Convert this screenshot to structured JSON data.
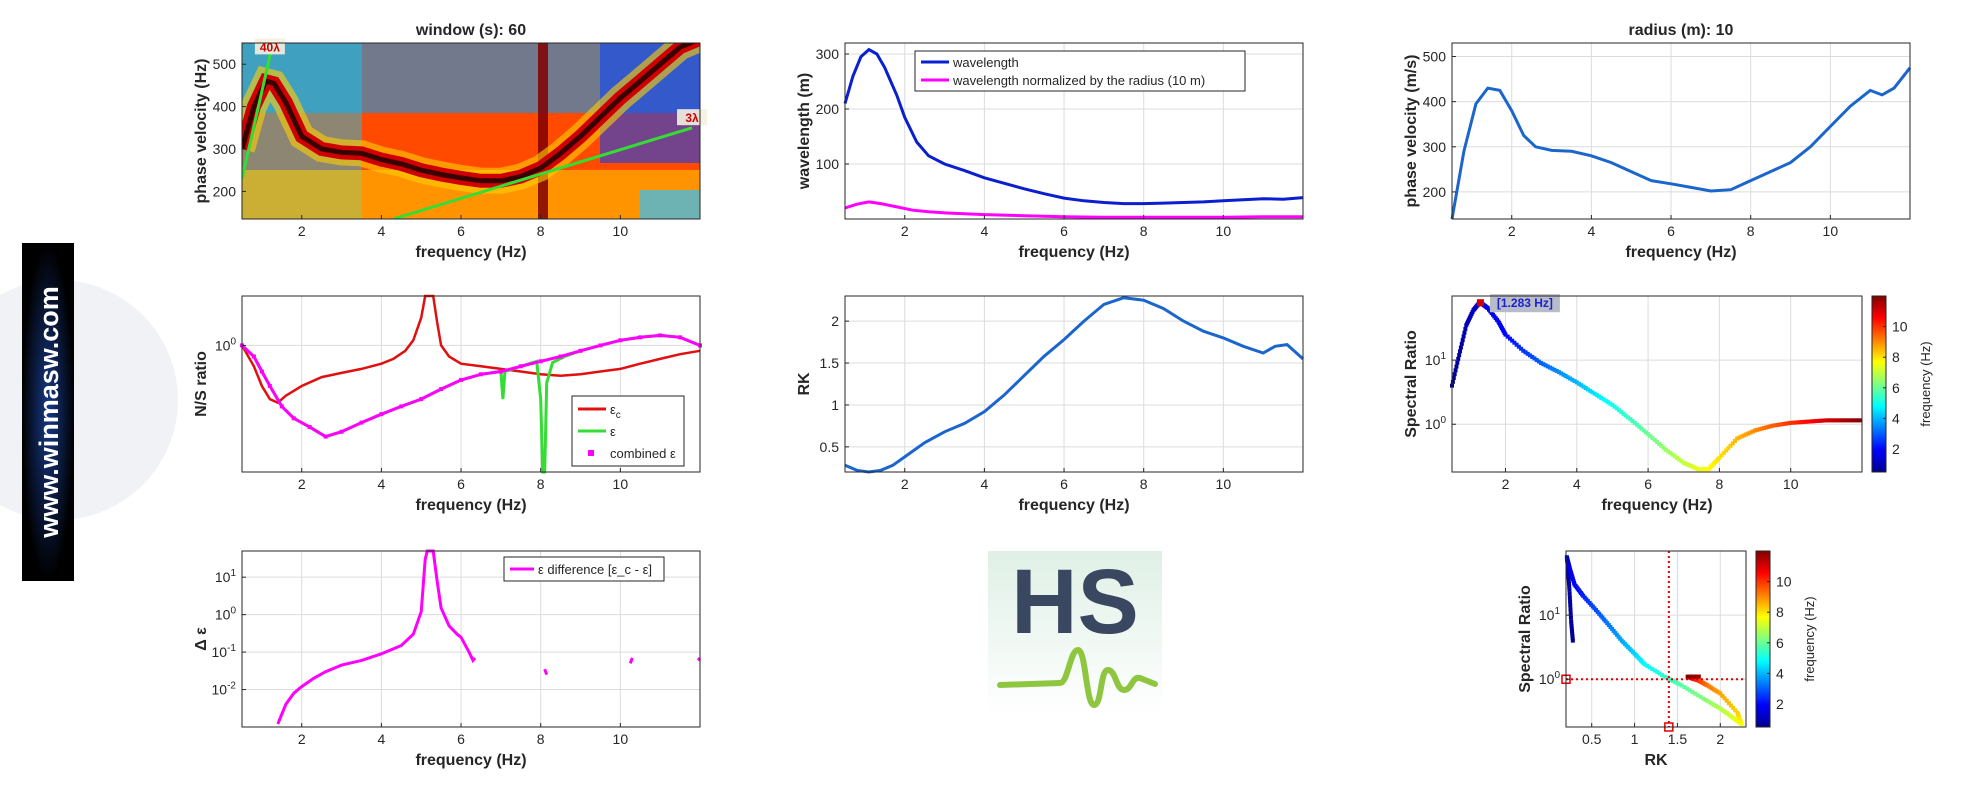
{
  "website": "www.winmasw.com",
  "logo": {
    "text": "HS"
  },
  "colors": {
    "axis": "#262626",
    "grid": "#dcdcdc",
    "blue": "#0044cc",
    "midblue": "#1a66cc",
    "magenta": "#ff00ff",
    "red": "#e01010",
    "green": "#33dd33",
    "darkred": "#cc0000"
  },
  "chart_data": [
    {
      "id": "p11",
      "type": "heatmap",
      "title": "window (s): 60",
      "xlabel": "frequency (Hz)",
      "ylabel": "phase velocity (Hz)",
      "xlim": [
        0.5,
        12
      ],
      "ylim": [
        135,
        550
      ],
      "xticks": [
        2,
        4,
        6,
        8,
        10
      ],
      "yticks": [
        200,
        300,
        400,
        500
      ],
      "annotations": [
        {
          "text": "40λ",
          "x": 1.2,
          "y": 535
        },
        {
          "text": "3λ",
          "x": 11.8,
          "y": 368
        }
      ],
      "lines": [
        {
          "name": "40λ",
          "x": [
            0.5,
            1.3
          ],
          "y": [
            230,
            560
          ]
        },
        {
          "name": "3λ",
          "x": [
            4.3,
            11.8
          ],
          "y": 135,
          "y2": 350
        }
      ],
      "ridge": {
        "x": [
          0.5,
          0.8,
          1.1,
          1.3,
          1.6,
          2.0,
          2.5,
          3.0,
          3.5,
          4.0,
          4.5,
          5.0,
          5.5,
          6.0,
          6.5,
          7.0,
          7.5,
          8.0,
          8.5,
          9.0,
          9.5,
          10.0,
          10.5,
          11.0,
          11.5,
          12.0
        ],
        "y": [
          300,
          400,
          460,
          455,
          410,
          330,
          300,
          292,
          290,
          275,
          265,
          250,
          240,
          232,
          225,
          225,
          235,
          255,
          290,
          330,
          375,
          420,
          460,
          500,
          540,
          560
        ]
      }
    },
    {
      "id": "p12",
      "type": "line",
      "xlabel": "frequency (Hz)",
      "ylabel": "wavelength (m)",
      "xlim": [
        0.5,
        12
      ],
      "ylim": [
        0,
        320
      ],
      "xticks": [
        2,
        4,
        6,
        8,
        10
      ],
      "yticks": [
        100,
        200,
        300
      ],
      "legend": "top-center",
      "series": [
        {
          "name": "wavelength",
          "color": "#0a1fd0",
          "x": [
            0.5,
            0.7,
            0.9,
            1.1,
            1.3,
            1.5,
            1.8,
            2.0,
            2.3,
            2.6,
            3.0,
            3.5,
            4.0,
            4.5,
            5.0,
            5.5,
            6.0,
            6.5,
            7.0,
            7.5,
            8.0,
            8.5,
            9.0,
            9.5,
            10.0,
            10.5,
            11.0,
            11.5,
            12.0
          ],
          "y": [
            210,
            260,
            295,
            308,
            300,
            275,
            225,
            185,
            140,
            115,
            100,
            88,
            75,
            65,
            55,
            46,
            38,
            33,
            30,
            28,
            28,
            29,
            30,
            31,
            33,
            35,
            37,
            36,
            39
          ]
        },
        {
          "name": "wavelength normalized by the radius (10 m)",
          "color": "#ff00ff",
          "x": [
            0.5,
            0.8,
            1.1,
            1.4,
            1.8,
            2.2,
            2.6,
            3.0,
            4.0,
            5.0,
            6.0,
            7.0,
            8.0,
            9.0,
            10.0,
            11.0,
            12.0
          ],
          "y": [
            20,
            27,
            31,
            28,
            22,
            16,
            13,
            11,
            8,
            6,
            4,
            3,
            3,
            3,
            3,
            4,
            4
          ]
        }
      ]
    },
    {
      "id": "p13",
      "type": "line",
      "title": "radius (m): 10",
      "xlabel": "frequency (Hz)",
      "ylabel": "phase velocity (m/s)",
      "xlim": [
        0.5,
        12
      ],
      "ylim": [
        140,
        530
      ],
      "xticks": [
        2,
        4,
        6,
        8,
        10
      ],
      "yticks": [
        200,
        300,
        400,
        500
      ],
      "series": [
        {
          "color": "#1a66cc",
          "x": [
            0.5,
            0.8,
            1.1,
            1.4,
            1.7,
            2.0,
            2.3,
            2.6,
            3.0,
            3.5,
            4.0,
            4.5,
            5.0,
            5.5,
            6.0,
            6.5,
            7.0,
            7.5,
            8.0,
            8.5,
            9.0,
            9.5,
            10.0,
            10.5,
            11.0,
            11.3,
            11.6,
            12.0
          ],
          "y": [
            140,
            290,
            395,
            430,
            425,
            380,
            325,
            300,
            292,
            290,
            280,
            265,
            245,
            225,
            218,
            210,
            202,
            205,
            225,
            245,
            265,
            300,
            345,
            390,
            425,
            415,
            430,
            475
          ]
        }
      ]
    },
    {
      "id": "p21",
      "type": "line",
      "xlabel": "frequency (Hz)",
      "ylabel": "N/S ratio",
      "xlim": [
        0.5,
        12
      ],
      "ylim": [
        0.3,
        1.6
      ],
      "yscale": "log",
      "xticks": [
        2,
        4,
        6,
        8,
        10
      ],
      "yticks": [
        1
      ],
      "yticklabels": [
        "10^0"
      ],
      "legend": "bottom-right",
      "series": [
        {
          "name": "ε_c",
          "color": "#e01010",
          "x": [
            0.5,
            0.8,
            1.0,
            1.2,
            1.4,
            1.6,
            2.0,
            2.5,
            3.0,
            3.5,
            4.0,
            4.3,
            4.6,
            4.8,
            5.0,
            5.1,
            5.2,
            5.3,
            5.4,
            5.5,
            5.7,
            6.0,
            6.5,
            7.0,
            7.5,
            8.0,
            8.5,
            9.0,
            9.5,
            10.0,
            10.5,
            11.0,
            11.5,
            12.0
          ],
          "y": [
            1.0,
            0.82,
            0.68,
            0.6,
            0.58,
            0.62,
            0.68,
            0.74,
            0.77,
            0.8,
            0.84,
            0.88,
            0.95,
            1.05,
            1.3,
            1.6,
            1.6,
            1.6,
            1.25,
            1.0,
            0.9,
            0.84,
            0.82,
            0.8,
            0.78,
            0.76,
            0.75,
            0.76,
            0.78,
            0.8,
            0.84,
            0.88,
            0.92,
            0.95
          ]
        },
        {
          "name": "ε",
          "color": "#33dd33",
          "x": [
            0.5,
            0.8,
            1.0,
            1.2,
            1.5,
            1.8,
            2.2,
            2.6,
            3.0,
            3.5,
            4.0,
            4.5,
            5.0,
            5.5,
            6.0,
            6.5,
            7.0,
            7.05,
            7.1,
            7.5,
            7.9,
            8.0,
            8.05,
            8.1,
            8.15,
            8.3,
            8.6,
            9.0,
            9.5,
            10.0,
            10.5,
            11.0,
            11.5,
            12.0
          ],
          "y": [
            1.0,
            0.9,
            0.78,
            0.68,
            0.56,
            0.5,
            0.46,
            0.42,
            0.44,
            0.48,
            0.52,
            0.56,
            0.6,
            0.66,
            0.72,
            0.76,
            0.78,
            0.6,
            0.78,
            0.82,
            0.86,
            0.6,
            0.3,
            0.3,
            0.7,
            0.85,
            0.9,
            0.95,
            1.0,
            1.05,
            1.08,
            1.1,
            1.08,
            1.0
          ]
        },
        {
          "name": "combined ε",
          "color": "#ff00ff",
          "x": [
            0.5,
            0.8,
            1.0,
            1.2,
            1.5,
            1.8,
            2.2,
            2.6,
            3.0,
            3.5,
            4.0,
            4.5,
            5.0,
            5.5,
            6.0,
            6.5,
            7.0,
            7.5,
            8.0,
            8.5,
            9.0,
            9.5,
            10.0,
            10.5,
            11.0,
            11.5,
            12.0
          ],
          "y": [
            1.0,
            0.9,
            0.78,
            0.68,
            0.56,
            0.5,
            0.46,
            0.42,
            0.44,
            0.48,
            0.52,
            0.56,
            0.6,
            0.66,
            0.72,
            0.76,
            0.78,
            0.82,
            0.86,
            0.9,
            0.95,
            1.0,
            1.05,
            1.08,
            1.1,
            1.08,
            1.0
          ]
        }
      ]
    },
    {
      "id": "p22",
      "type": "line",
      "xlabel": "frequency (Hz)",
      "ylabel": "RK",
      "xlim": [
        0.5,
        12
      ],
      "ylim": [
        0.2,
        2.3
      ],
      "xticks": [
        2,
        4,
        6,
        8,
        10
      ],
      "yticks": [
        0.5,
        1,
        1.5,
        2
      ],
      "series": [
        {
          "color": "#1a66cc",
          "x": [
            0.5,
            0.8,
            1.1,
            1.4,
            1.7,
            2.0,
            2.5,
            3.0,
            3.5,
            4.0,
            4.5,
            5.0,
            5.5,
            6.0,
            6.5,
            7.0,
            7.5,
            8.0,
            8.5,
            9.0,
            9.5,
            10.0,
            10.5,
            11.0,
            11.3,
            11.6,
            12.0
          ],
          "y": [
            0.28,
            0.22,
            0.2,
            0.22,
            0.28,
            0.38,
            0.55,
            0.68,
            0.78,
            0.92,
            1.12,
            1.35,
            1.58,
            1.78,
            2.0,
            2.2,
            2.28,
            2.25,
            2.15,
            2.0,
            1.88,
            1.8,
            1.7,
            1.62,
            1.7,
            1.72,
            1.55
          ]
        }
      ]
    },
    {
      "id": "p23",
      "type": "scatter",
      "xlabel": "frequency (Hz)",
      "ylabel": "Spectral Ratio",
      "xlim": [
        0.5,
        12
      ],
      "ylim": [
        0.18,
        100
      ],
      "yscale": "log",
      "xticks": [
        2,
        4,
        6,
        8,
        10
      ],
      "yticks": [
        1,
        10
      ],
      "yticklabels": [
        "10^0",
        "10^1"
      ],
      "annotation": {
        "text": "[1.283 Hz]",
        "x": 1.283,
        "y": 80
      },
      "colorbar": {
        "label": "frequency (Hz)",
        "range": [
          0.5,
          12
        ],
        "ticks": [
          2,
          4,
          6,
          8,
          10
        ]
      },
      "x": [
        0.5,
        0.7,
        0.9,
        1.1,
        1.283,
        1.5,
        1.8,
        2.0,
        2.5,
        3.0,
        3.5,
        4.0,
        4.5,
        5.0,
        5.5,
        6.0,
        6.5,
        7.0,
        7.4,
        7.7,
        8.0,
        8.5,
        9.0,
        9.5,
        10.0,
        10.5,
        11.0,
        11.5,
        12.0
      ],
      "y": [
        4,
        12,
        35,
        60,
        80,
        65,
        40,
        25,
        14,
        9,
        6.5,
        4.5,
        3,
        2,
        1.2,
        0.7,
        0.4,
        0.25,
        0.2,
        0.2,
        0.3,
        0.6,
        0.8,
        0.95,
        1.05,
        1.1,
        1.15,
        1.15,
        1.15
      ]
    },
    {
      "id": "p31",
      "type": "line",
      "xlabel": "frequency (Hz)",
      "ylabel": "Δ ε",
      "xlim": [
        0.5,
        12
      ],
      "ylim": [
        0.001,
        50
      ],
      "yscale": "log",
      "xticks": [
        2,
        4,
        6,
        8,
        10
      ],
      "yticks": [
        0.01,
        0.1,
        1,
        10
      ],
      "yticklabels": [
        "10^-2",
        "10^-1",
        "10^0",
        "10^1"
      ],
      "legend": "top-right",
      "series": [
        {
          "name": "ε difference [ε_c - ε]",
          "color": "#ff00ff",
          "segments": [
            {
              "x": [
                1.4,
                1.6,
                1.8,
                2.0,
                2.3,
                2.6,
                3.0,
                3.5,
                4.0,
                4.5,
                4.8,
                5.0,
                5.1,
                5.15,
                5.3,
                5.4,
                5.5,
                5.7,
                5.9,
                6.0,
                6.2,
                6.3,
                6.35
              ],
              "y": [
                0.0012,
                0.004,
                0.008,
                0.012,
                0.02,
                0.03,
                0.045,
                0.06,
                0.09,
                0.15,
                0.3,
                1.2,
                30,
                50,
                50,
                8,
                1.5,
                0.5,
                0.3,
                0.25,
                0.1,
                0.06,
                0.07
              ]
            },
            {
              "x": [
                8.1,
                8.15
              ],
              "y": [
                0.035,
                0.025
              ]
            },
            {
              "x": [
                10.25,
                10.3
              ],
              "y": [
                0.05,
                0.07
              ]
            },
            {
              "x": [
                11.95,
                12.0
              ],
              "y": [
                0.06,
                0.07
              ]
            }
          ]
        }
      ]
    },
    {
      "id": "p33",
      "type": "scatter",
      "xlabel": "RK",
      "ylabel": "Spectral Ratio",
      "xlim": [
        0.2,
        2.3
      ],
      "ylim": [
        0.18,
        100
      ],
      "yscale": "log",
      "xticks": [
        0.5,
        1,
        1.5,
        2
      ],
      "yticks": [
        1,
        10
      ],
      "yticklabels": [
        "10^0",
        "10^1"
      ],
      "reference": {
        "x": 1.4,
        "y": 1
      },
      "colorbar": {
        "label": "frequency (Hz)",
        "range": [
          0.5,
          12
        ],
        "ticks": [
          2,
          4,
          6,
          8,
          10
        ]
      },
      "points": [
        [
          0.28,
          4,
          0.5
        ],
        [
          0.26,
          8,
          0.6
        ],
        [
          0.24,
          25,
          0.8
        ],
        [
          0.22,
          60,
          1.0
        ],
        [
          0.21,
          80,
          1.283
        ],
        [
          0.25,
          50,
          1.6
        ],
        [
          0.3,
          30,
          1.9
        ],
        [
          0.4,
          20,
          2.3
        ],
        [
          0.55,
          12,
          2.8
        ],
        [
          0.7,
          7,
          3.3
        ],
        [
          0.85,
          4,
          3.8
        ],
        [
          1.0,
          2.5,
          4.3
        ],
        [
          1.12,
          1.7,
          4.8
        ],
        [
          1.35,
          1.1,
          5.3
        ],
        [
          1.55,
          0.8,
          5.8
        ],
        [
          1.8,
          0.5,
          6.3
        ],
        [
          2.0,
          0.35,
          6.8
        ],
        [
          2.15,
          0.25,
          7.3
        ],
        [
          2.25,
          0.2,
          7.6
        ],
        [
          2.2,
          0.3,
          8.2
        ],
        [
          2.0,
          0.6,
          8.7
        ],
        [
          1.85,
          0.8,
          9.2
        ],
        [
          1.75,
          0.95,
          9.8
        ],
        [
          1.65,
          1.05,
          10.5
        ],
        [
          1.7,
          1.1,
          11.2
        ],
        [
          1.75,
          1.1,
          11.6
        ],
        [
          1.6,
          1.1,
          12.0
        ]
      ]
    }
  ]
}
